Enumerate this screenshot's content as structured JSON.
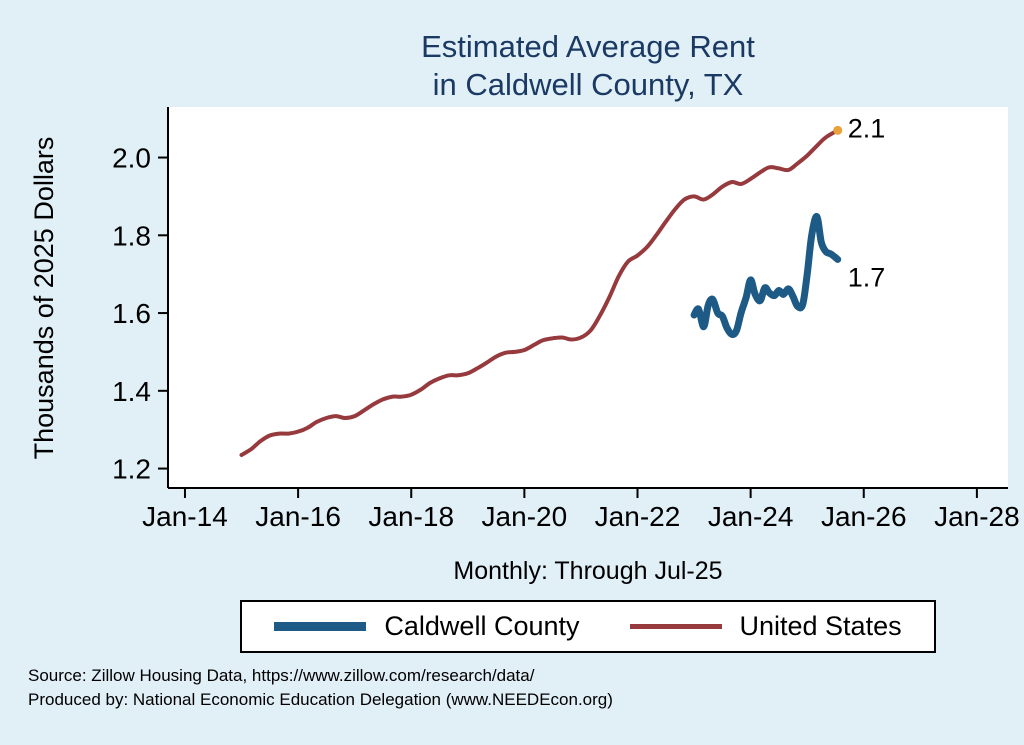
{
  "colors": {
    "background": "#e1eff7",
    "plot_bg": "#ffffff",
    "title": "#1a3a64",
    "axis": "#000000",
    "text": "#000000",
    "end_marker": "#e9a23b"
  },
  "title": {
    "line1": "Estimated Average Rent",
    "line2": "in Caldwell County, TX"
  },
  "ylabel": "Thousands of 2025 Dollars",
  "subtitle": "Monthly: Through Jul-25",
  "footer": {
    "source": "Source: Zillow Housing Data, https://www.zillow.com/research/data/",
    "produced": "Produced by: National Economic Education Delegation (www.NEEDEcon.org)"
  },
  "chart_data": {
    "type": "line",
    "title": "Estimated Average Rent in Caldwell County, TX",
    "xlabel": "",
    "ylabel": "Thousands of 2025 Dollars",
    "note": "Monthly: Through Jul-25",
    "grid": false,
    "legend_position": "bottom",
    "xlim": [
      2013.7,
      2028.55
    ],
    "ylim": [
      1.15,
      2.13
    ],
    "y_ticks": [
      1.2,
      1.4,
      1.6,
      1.8,
      2.0
    ],
    "x_ticks": [
      {
        "t": 2014,
        "label": "Jan-14"
      },
      {
        "t": 2016,
        "label": "Jan-16"
      },
      {
        "t": 2018,
        "label": "Jan-18"
      },
      {
        "t": 2020,
        "label": "Jan-20"
      },
      {
        "t": 2022,
        "label": "Jan-22"
      },
      {
        "t": 2024,
        "label": "Jan-24"
      },
      {
        "t": 2026,
        "label": "Jan-26"
      },
      {
        "t": 2028,
        "label": "Jan-28"
      }
    ],
    "series": [
      {
        "id": "caldwell",
        "name": "Caldwell County",
        "color": "#1d5a86",
        "width": 7,
        "end_label": "1.7",
        "end_marker": false,
        "points": [
          [
            2023.0,
            1.595
          ],
          [
            2023.08,
            1.61
          ],
          [
            2023.17,
            1.565
          ],
          [
            2023.25,
            1.62
          ],
          [
            2023.33,
            1.635
          ],
          [
            2023.42,
            1.6
          ],
          [
            2023.5,
            1.592
          ],
          [
            2023.58,
            1.562
          ],
          [
            2023.67,
            1.545
          ],
          [
            2023.75,
            1.555
          ],
          [
            2023.83,
            1.6
          ],
          [
            2023.92,
            1.64
          ],
          [
            2024.0,
            1.685
          ],
          [
            2024.08,
            1.648
          ],
          [
            2024.17,
            1.632
          ],
          [
            2024.25,
            1.665
          ],
          [
            2024.33,
            1.652
          ],
          [
            2024.42,
            1.645
          ],
          [
            2024.5,
            1.658
          ],
          [
            2024.58,
            1.648
          ],
          [
            2024.67,
            1.662
          ],
          [
            2024.75,
            1.642
          ],
          [
            2024.83,
            1.617
          ],
          [
            2024.92,
            1.622
          ],
          [
            2025.0,
            1.7
          ],
          [
            2025.08,
            1.8
          ],
          [
            2025.17,
            1.848
          ],
          [
            2025.25,
            1.782
          ],
          [
            2025.33,
            1.758
          ],
          [
            2025.42,
            1.752
          ],
          [
            2025.54,
            1.738
          ]
        ]
      },
      {
        "id": "us",
        "name": "United States",
        "color": "#963a3e",
        "width": 4,
        "end_label": "2.1",
        "end_marker": true,
        "points": [
          [
            2015.0,
            1.235
          ],
          [
            2015.17,
            1.25
          ],
          [
            2015.33,
            1.27
          ],
          [
            2015.5,
            1.285
          ],
          [
            2015.67,
            1.29
          ],
          [
            2015.83,
            1.29
          ],
          [
            2016.0,
            1.295
          ],
          [
            2016.17,
            1.305
          ],
          [
            2016.33,
            1.32
          ],
          [
            2016.5,
            1.33
          ],
          [
            2016.67,
            1.335
          ],
          [
            2016.83,
            1.33
          ],
          [
            2017.0,
            1.335
          ],
          [
            2017.17,
            1.35
          ],
          [
            2017.33,
            1.365
          ],
          [
            2017.5,
            1.378
          ],
          [
            2017.67,
            1.385
          ],
          [
            2017.83,
            1.385
          ],
          [
            2018.0,
            1.39
          ],
          [
            2018.17,
            1.403
          ],
          [
            2018.33,
            1.42
          ],
          [
            2018.5,
            1.432
          ],
          [
            2018.67,
            1.44
          ],
          [
            2018.83,
            1.44
          ],
          [
            2019.0,
            1.445
          ],
          [
            2019.17,
            1.458
          ],
          [
            2019.33,
            1.472
          ],
          [
            2019.5,
            1.488
          ],
          [
            2019.67,
            1.498
          ],
          [
            2019.83,
            1.5
          ],
          [
            2020.0,
            1.505
          ],
          [
            2020.17,
            1.518
          ],
          [
            2020.33,
            1.53
          ],
          [
            2020.5,
            1.535
          ],
          [
            2020.67,
            1.537
          ],
          [
            2020.83,
            1.532
          ],
          [
            2021.0,
            1.537
          ],
          [
            2021.17,
            1.555
          ],
          [
            2021.33,
            1.592
          ],
          [
            2021.5,
            1.64
          ],
          [
            2021.67,
            1.695
          ],
          [
            2021.83,
            1.732
          ],
          [
            2022.0,
            1.748
          ],
          [
            2022.17,
            1.77
          ],
          [
            2022.33,
            1.8
          ],
          [
            2022.5,
            1.835
          ],
          [
            2022.67,
            1.868
          ],
          [
            2022.83,
            1.892
          ],
          [
            2023.0,
            1.9
          ],
          [
            2023.17,
            1.892
          ],
          [
            2023.33,
            1.905
          ],
          [
            2023.5,
            1.925
          ],
          [
            2023.67,
            1.937
          ],
          [
            2023.83,
            1.932
          ],
          [
            2024.0,
            1.945
          ],
          [
            2024.17,
            1.962
          ],
          [
            2024.33,
            1.975
          ],
          [
            2024.5,
            1.972
          ],
          [
            2024.67,
            1.968
          ],
          [
            2024.83,
            1.985
          ],
          [
            2025.0,
            2.005
          ],
          [
            2025.17,
            2.03
          ],
          [
            2025.33,
            2.052
          ],
          [
            2025.54,
            2.07
          ]
        ]
      }
    ]
  }
}
